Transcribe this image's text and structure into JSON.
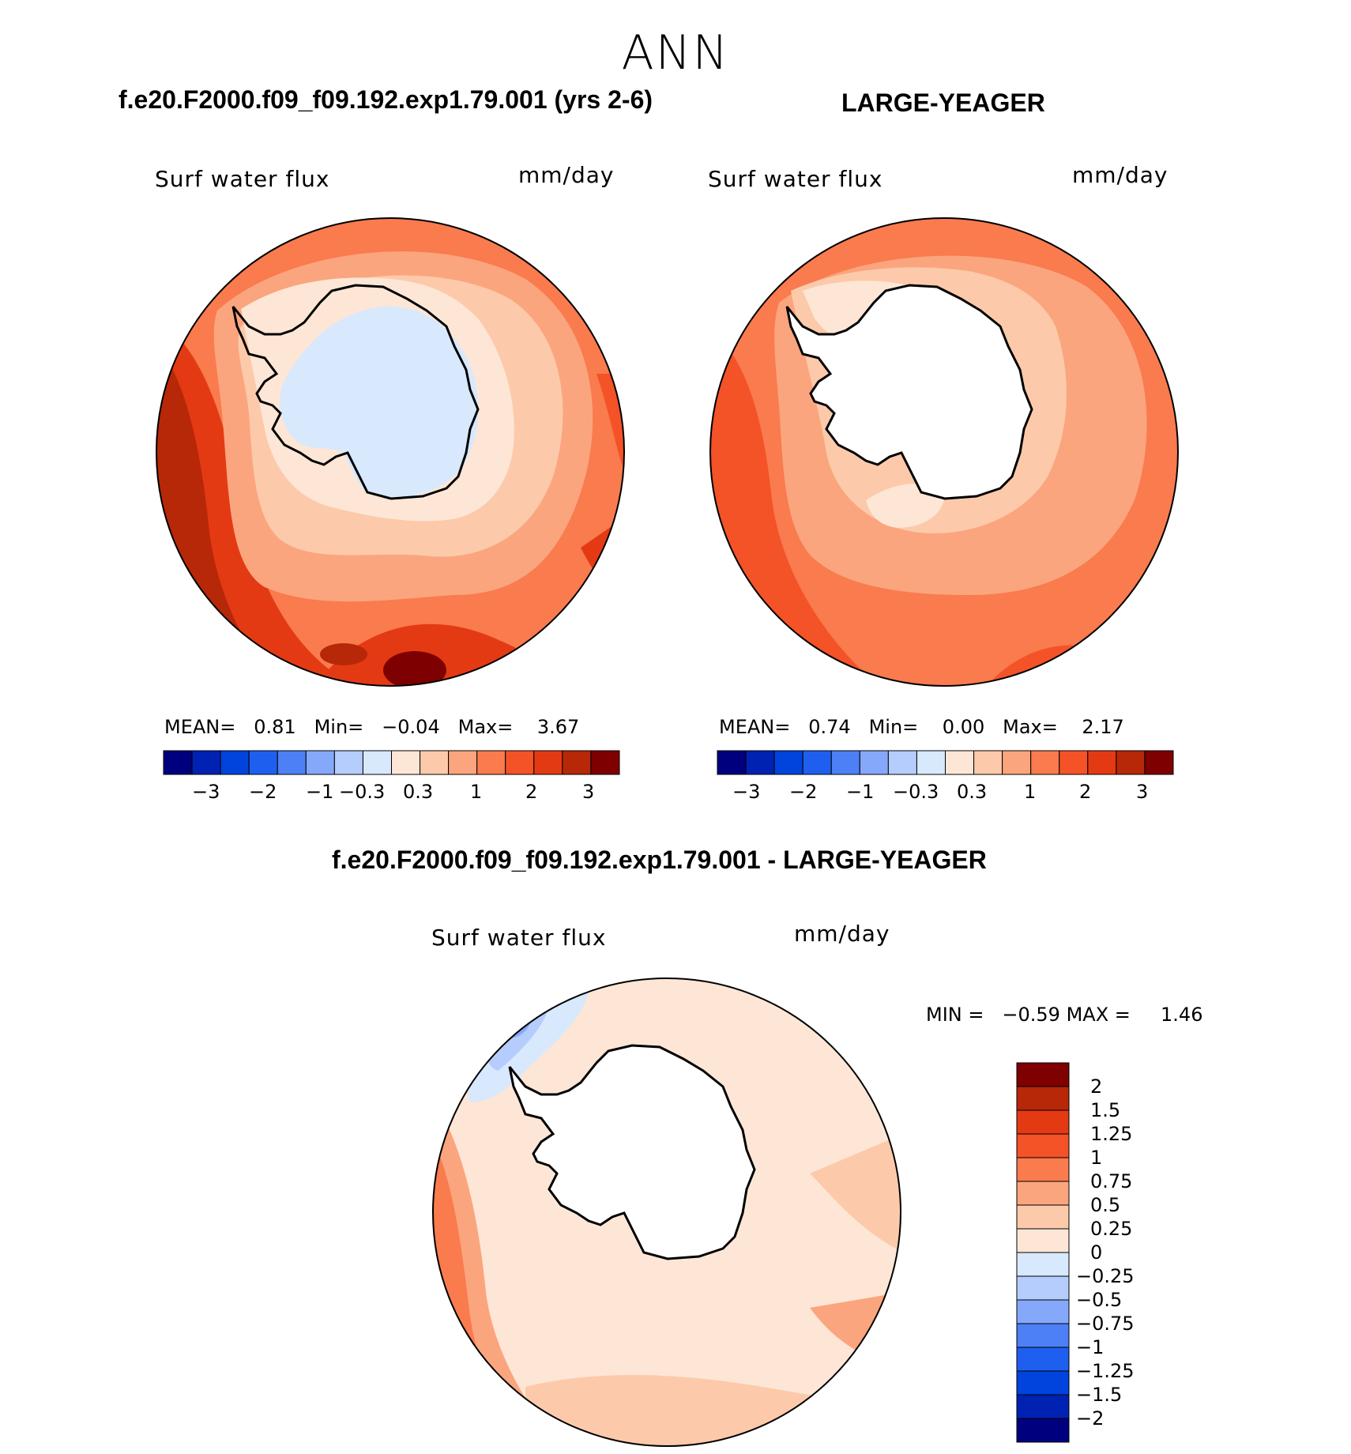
{
  "season": "ANN",
  "colors": {
    "scale": [
      "#00007f",
      "#0022b2",
      "#0044dd",
      "#1f5fef",
      "#4d7ff5",
      "#86a8fb",
      "#b5cdfc",
      "#d8e8fd",
      "#fde6d6",
      "#fccaaa",
      "#fba57e",
      "#f97b4e",
      "#f45227",
      "#e43a14",
      "#b72808",
      "#7f0000"
    ],
    "coastline": "#000000",
    "land_mask": "#ffffff"
  },
  "panels": [
    {
      "id": "model",
      "title": "f.e20.F2000.f09_f09.192.exp1.79.001 (yrs 2-6)",
      "field": "Surf  water  flux",
      "units": "mm/day",
      "stats": {
        "mean_label": "MEAN=",
        "mean": "0.81",
        "min_label": "Min=",
        "min": "−0.04",
        "max_label": "Max=",
        "max": "3.67"
      },
      "colorbar_labels": [
        "−3",
        "−2",
        "−1",
        "−0.3",
        "0.3",
        "1",
        "2",
        "3"
      ]
    },
    {
      "id": "obs",
      "title": "LARGE-YEAGER",
      "field": "Surf  water  flux",
      "units": "mm/day",
      "stats": {
        "mean_label": "MEAN=",
        "mean": "0.74",
        "min_label": "Min=",
        "min": "0.00",
        "max_label": "Max=",
        "max": "2.17"
      },
      "colorbar_labels": [
        "−3",
        "−2",
        "−1",
        "−0.3",
        "0.3",
        "1",
        "2",
        "3"
      ]
    },
    {
      "id": "diff",
      "title": "f.e20.F2000.f09_f09.192.exp1.79.001 - LARGE-YEAGER",
      "field": "Surf  water  flux",
      "units": "mm/day",
      "stats": {
        "min_label": "MIN =",
        "min": "−0.59",
        "max_label": "MAX =",
        "max": "1.46"
      },
      "colorbar_labels": [
        "2",
        "1.5",
        "1.25",
        "1",
        "0.75",
        "0.5",
        "0.25",
        "0",
        "−0.25",
        "−0.5",
        "−0.75",
        "−1",
        "−1.25",
        "−1.5",
        "−2"
      ]
    }
  ]
}
